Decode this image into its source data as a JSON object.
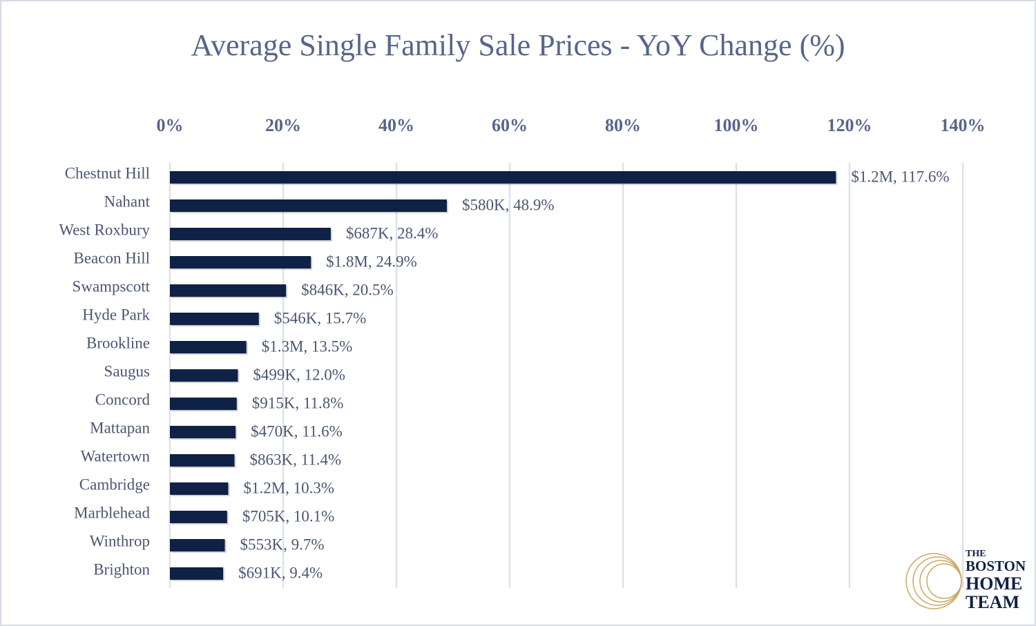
{
  "chart_data": {
    "type": "hbar",
    "title": "Average Single Family Sale Prices - YoY Change (%)",
    "categories": [
      "Chestnut Hill",
      "Nahant",
      "West Roxbury",
      "Beacon Hill",
      "Swampscott",
      "Hyde Park",
      "Brookline",
      "Saugus",
      "Concord",
      "Mattapan",
      "Watertown",
      "Cambridge",
      "Marblehead",
      "Winthrop",
      "Brighton"
    ],
    "values": [
      117.6,
      48.9,
      28.4,
      24.9,
      20.5,
      15.7,
      13.5,
      12.0,
      11.8,
      11.6,
      11.4,
      10.3,
      10.1,
      9.7,
      9.4
    ],
    "value_labels": [
      "$1.2M, 117.6%",
      "$580K, 48.9%",
      "$687K, 28.4%",
      "$1.8M, 24.9%",
      "$846K, 20.5%",
      "$546K, 15.7%",
      "$1.3M, 13.5%",
      "$499K, 12.0%",
      "$915K, 11.8%",
      "$470K, 11.6%",
      "$863K, 11.4%",
      "$1.2M, 10.3%",
      "$705K, 10.1%",
      "$553K, 9.7%",
      "$691K, 9.4%"
    ],
    "color": "#0f2145",
    "xlim": [
      0,
      140
    ],
    "xticks": [
      {
        "value": 0,
        "label": "0%"
      },
      {
        "value": 20,
        "label": "20%"
      },
      {
        "value": 40,
        "label": "40%"
      },
      {
        "value": 60,
        "label": "60%"
      },
      {
        "value": 80,
        "label": "80%"
      },
      {
        "value": 100,
        "label": "100%"
      },
      {
        "value": 120,
        "label": "120%"
      },
      {
        "value": 140,
        "label": "140%"
      }
    ],
    "grid": true
  },
  "logo": [
    "THE",
    "BOSTON",
    "HOME",
    "TEAM"
  ]
}
